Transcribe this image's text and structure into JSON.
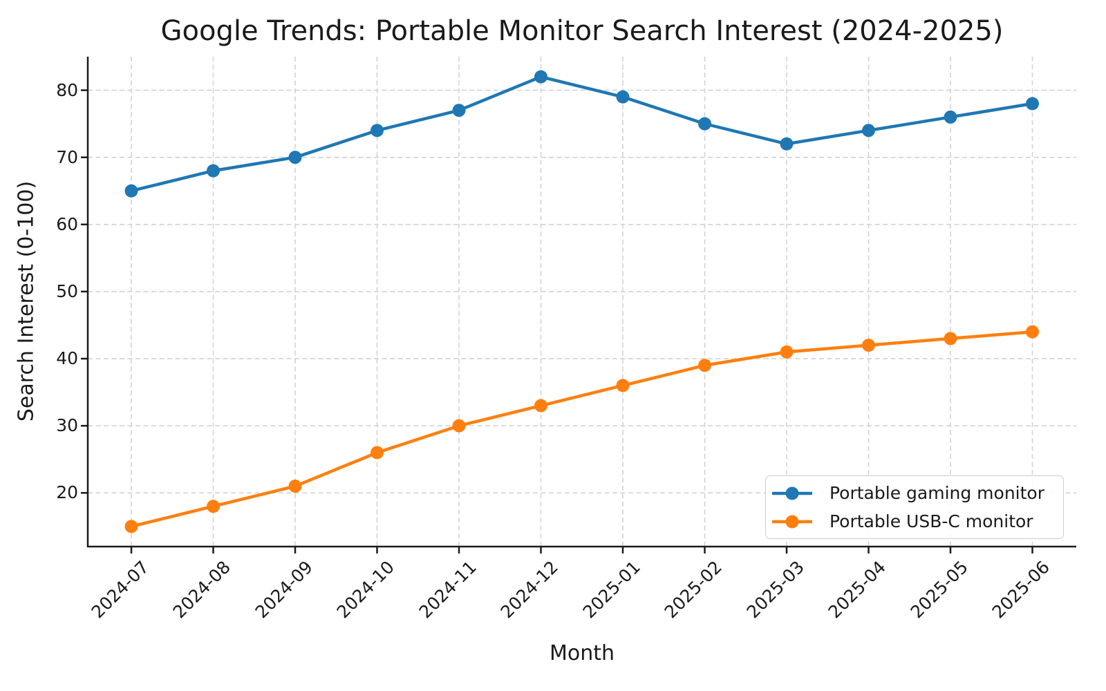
{
  "chart_data": {
    "type": "line",
    "title": "Google Trends: Portable Monitor Search Interest (2024-2025)",
    "xlabel": "Month",
    "ylabel": "Search Interest (0-100)",
    "categories": [
      "2024-07",
      "2024-08",
      "2024-09",
      "2024-10",
      "2024-11",
      "2024-12",
      "2025-01",
      "2025-02",
      "2025-03",
      "2025-04",
      "2025-05",
      "2025-06"
    ],
    "series": [
      {
        "name": "Portable gaming monitor",
        "color": "#1f77b4",
        "values": [
          65,
          68,
          70,
          74,
          77,
          82,
          79,
          75,
          72,
          74,
          76,
          78
        ]
      },
      {
        "name": "Portable USB-C monitor",
        "color": "#ff7f0e",
        "values": [
          15,
          18,
          21,
          26,
          30,
          33,
          36,
          39,
          41,
          42,
          43,
          44
        ]
      }
    ],
    "yticks": [
      20,
      30,
      40,
      50,
      60,
      70,
      80
    ],
    "ylim": [
      12,
      85
    ],
    "grid": true,
    "grid_style": "dashed",
    "grid_color": "#d2d2d2",
    "axis_color": "#1a1a1a",
    "legend_position": "lower right",
    "marker": "circle"
  }
}
